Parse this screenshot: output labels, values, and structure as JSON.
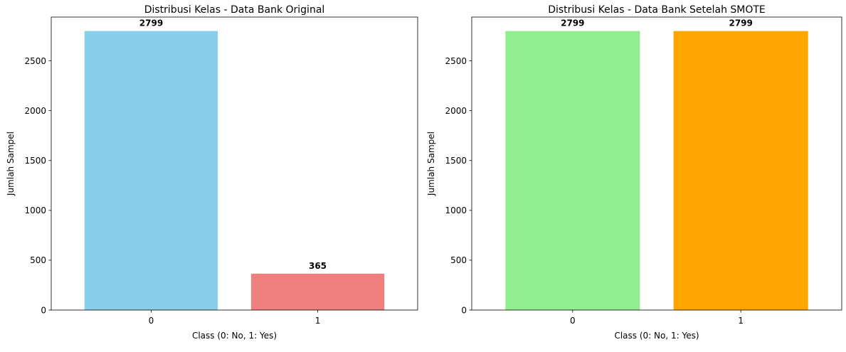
{
  "chart_data": [
    {
      "type": "bar",
      "title": "Distribusi Kelas - Data Bank Original",
      "xlabel": "Class (0: No, 1: Yes)",
      "ylabel": "Jumlah Sampel",
      "categories": [
        "0",
        "1"
      ],
      "values": [
        2799,
        365
      ],
      "data_labels": [
        "2799",
        "365"
      ],
      "colors": [
        "#87ceeb",
        "#f08080"
      ],
      "ylim": [
        0,
        2939
      ],
      "yticks": [
        0,
        500,
        1000,
        1500,
        2000,
        2500
      ],
      "grid": false
    },
    {
      "type": "bar",
      "title": "Distribusi Kelas - Data Bank Setelah SMOTE",
      "xlabel": "Class (0: No, 1: Yes)",
      "ylabel": "Jumlah Sampel",
      "categories": [
        "0",
        "1"
      ],
      "values": [
        2799,
        2799
      ],
      "data_labels": [
        "2799",
        "2799"
      ],
      "colors": [
        "#90ee90",
        "#ffa500"
      ],
      "ylim": [
        0,
        2939
      ],
      "yticks": [
        0,
        500,
        1000,
        1500,
        2000,
        2500
      ],
      "grid": false
    }
  ]
}
